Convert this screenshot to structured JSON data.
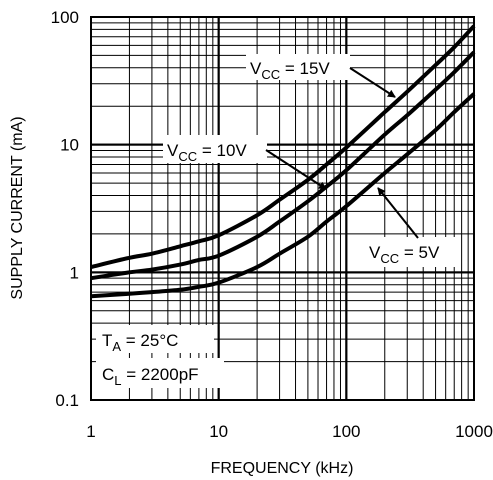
{
  "chart_data": {
    "type": "line",
    "title": "",
    "xlabel": "FREQUENCY (kHz)",
    "ylabel": "SUPPLY CURRENT (mA)",
    "x_scale": "log",
    "y_scale": "log",
    "xlim": [
      1,
      1000
    ],
    "ylim": [
      0.1,
      100
    ],
    "x_ticks": [
      "1",
      "10",
      "100",
      "1000"
    ],
    "y_ticks": [
      "100",
      "10",
      "1",
      "0.1"
    ],
    "grid": true,
    "series": [
      {
        "name": "VCC = 15V",
        "x": [
          1,
          2,
          3,
          5,
          7,
          10,
          20,
          30,
          50,
          70,
          100,
          200,
          300,
          500,
          700,
          1000
        ],
        "y": [
          1.1,
          1.3,
          1.4,
          1.6,
          1.75,
          1.95,
          2.8,
          3.7,
          5.3,
          7.0,
          9.5,
          18,
          26,
          42,
          58,
          85
        ]
      },
      {
        "name": "VCC = 10V",
        "x": [
          1,
          2,
          3,
          5,
          7,
          10,
          20,
          30,
          50,
          70,
          100,
          200,
          300,
          500,
          700,
          1000
        ],
        "y": [
          0.9,
          1.0,
          1.05,
          1.15,
          1.25,
          1.35,
          1.9,
          2.5,
          3.6,
          4.7,
          6.3,
          12,
          17,
          27,
          37,
          53
        ]
      },
      {
        "name": "VCC = 5V",
        "x": [
          1,
          2,
          3,
          5,
          7,
          10,
          20,
          30,
          50,
          70,
          100,
          200,
          300,
          500,
          700,
          1000
        ],
        "y": [
          0.65,
          0.68,
          0.7,
          0.73,
          0.77,
          0.83,
          1.1,
          1.4,
          1.9,
          2.5,
          3.3,
          6.0,
          8.4,
          13,
          18,
          25
        ]
      }
    ]
  },
  "annotations": {
    "v15": {
      "main": "V",
      "sub": "CC",
      "rest": " = 15V"
    },
    "v10": {
      "main": "V",
      "sub": "CC",
      "rest": " = 10V"
    },
    "v5": {
      "main": "V",
      "sub": "CC",
      "rest": " = 5V"
    },
    "ta": {
      "main": "T",
      "sub": "A",
      "rest": " = 25°C"
    },
    "cl": {
      "main": "C",
      "sub": "L",
      "rest": " = 2200pF"
    }
  }
}
